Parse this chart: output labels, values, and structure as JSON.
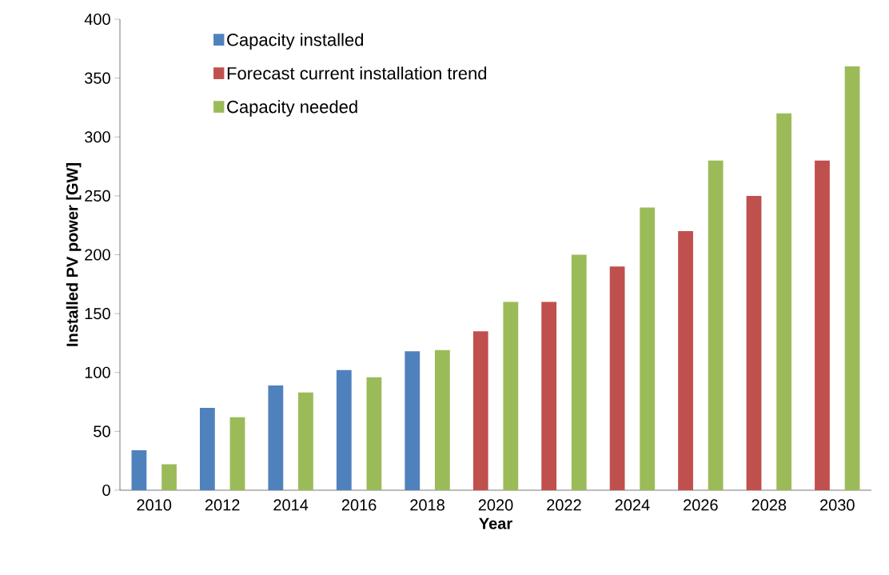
{
  "chart_data": {
    "type": "bar",
    "xlabel": "Year",
    "ylabel": "Installed PV power [GW]",
    "categories": [
      "2010",
      "2012",
      "2014",
      "2016",
      "2018",
      "2020",
      "2022",
      "2024",
      "2026",
      "2028",
      "2030"
    ],
    "series": [
      {
        "name": "Capacity installed",
        "color": "#4f81bd",
        "values": [
          34,
          70,
          89,
          102,
          118,
          null,
          null,
          null,
          null,
          null,
          null
        ]
      },
      {
        "name": "Forecast current installation trend",
        "color": "#c0504d",
        "values": [
          null,
          null,
          null,
          null,
          null,
          135,
          160,
          190,
          220,
          250,
          280
        ]
      },
      {
        "name": "Capacity needed",
        "color": "#9bbb59",
        "values": [
          22,
          62,
          83,
          96,
          119,
          160,
          200,
          240,
          280,
          320,
          360
        ]
      }
    ],
    "ylim": [
      0,
      400
    ],
    "yticks": [
      0,
      50,
      100,
      150,
      200,
      250,
      300,
      350,
      400
    ],
    "legend": "top left"
  }
}
